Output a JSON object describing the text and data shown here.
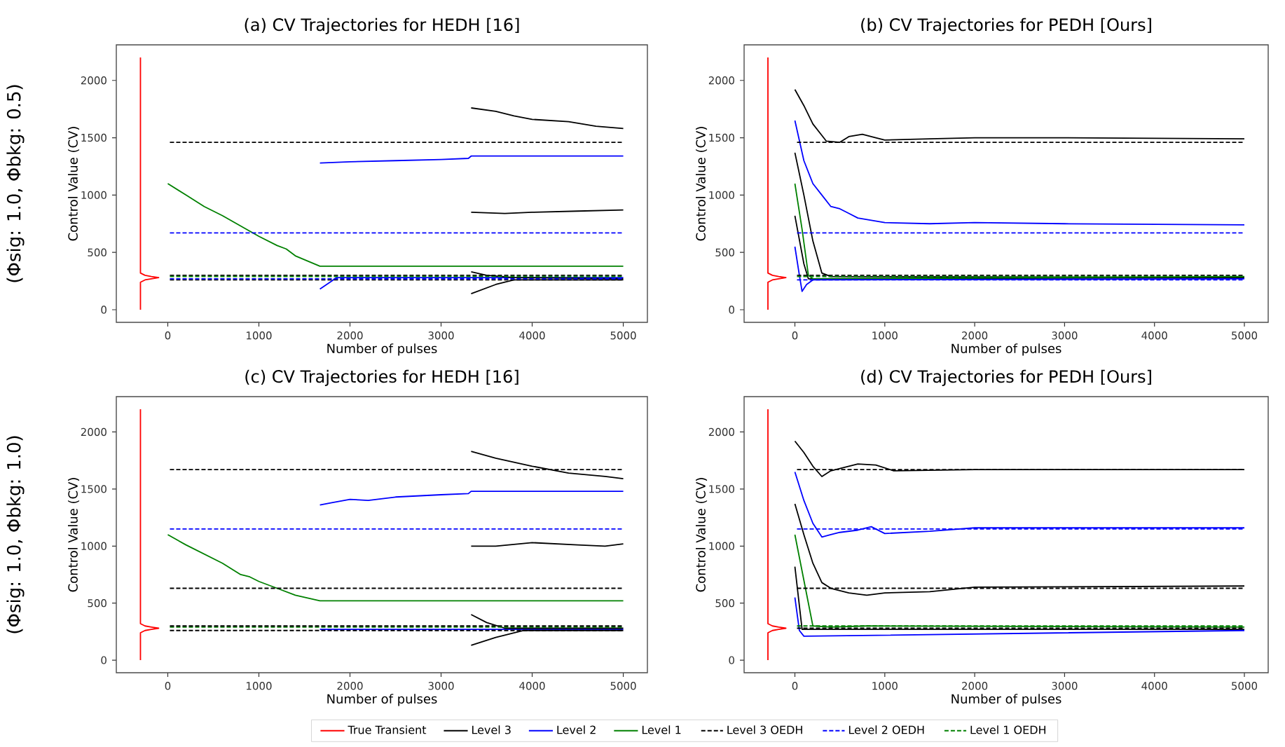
{
  "chart_data": [
    {
      "type": "line",
      "title": "(a) CV Trajectories for HEDH [16]",
      "xlabel": "Number of pulses",
      "ylabel": "Control Value (CV)",
      "xlim": [
        -565,
        5265
      ],
      "ylim": [
        -110,
        2310
      ],
      "xticks": [
        0,
        1000,
        2000,
        3000,
        4000,
        5000
      ],
      "yticks": [
        0,
        500,
        1000,
        1500,
        2000
      ],
      "annotations": [
        "(Φsig: 1.0,    Φbkg: 0.5)"
      ],
      "series": [
        {
          "color": "#ff0000",
          "x": [
            -300,
            -300,
            -300,
            -250,
            -180,
            -100,
            -180,
            -250,
            -300,
            -300,
            -300
          ],
          "values": [
            0,
            200,
            240,
            260,
            270,
            280,
            290,
            300,
            320,
            360,
            2200
          ]
        },
        {
          "color": "#008000",
          "x": [
            0,
            200,
            400,
            600,
            800,
            1000,
            1200,
            1300,
            1400,
            1670,
            5000
          ],
          "values": [
            1100,
            1000,
            900,
            820,
            730,
            640,
            560,
            530,
            470,
            380,
            380
          ]
        },
        {
          "color": "#0000ff",
          "x": [
            1670,
            2000,
            2500,
            3000,
            3300,
            3330,
            5000
          ],
          "values": [
            1280,
            1290,
            1300,
            1310,
            1320,
            1340,
            1340
          ]
        },
        {
          "color": "#0000ff",
          "x": [
            1670,
            1800,
            1850,
            5000
          ],
          "values": [
            180,
            250,
            280,
            280
          ]
        },
        {
          "color": "#000000",
          "x": [
            3330,
            3600,
            3800,
            4000,
            4400,
            4700,
            5000
          ],
          "values": [
            1760,
            1730,
            1690,
            1660,
            1640,
            1600,
            1580
          ]
        },
        {
          "color": "#000000",
          "x": [
            3330,
            3700,
            4000,
            4500,
            5000
          ],
          "values": [
            850,
            840,
            850,
            860,
            870
          ]
        },
        {
          "color": "#000000",
          "x": [
            3330,
            3500,
            3800,
            5000
          ],
          "values": [
            330,
            300,
            280,
            270
          ]
        },
        {
          "color": "#000000",
          "x": [
            3330,
            3600,
            3800,
            5000
          ],
          "values": [
            140,
            220,
            260,
            260
          ]
        },
        {
          "color": "#000000",
          "line_style": "dashed",
          "x": [
            0,
            5000
          ],
          "values": [
            1460,
            1460
          ]
        },
        {
          "color": "#000000",
          "line_style": "dashed",
          "x": [
            0,
            5000
          ],
          "values": [
            300,
            300
          ]
        },
        {
          "color": "#000000",
          "line_style": "dashed",
          "x": [
            0,
            5000
          ],
          "values": [
            260,
            260
          ]
        },
        {
          "color": "#0000ff",
          "line_style": "dashed",
          "x": [
            0,
            5000
          ],
          "values": [
            670,
            670
          ]
        },
        {
          "color": "#0000ff",
          "line_style": "dashed",
          "x": [
            0,
            5000
          ],
          "values": [
            270,
            270
          ]
        },
        {
          "color": "#008000",
          "line_style": "dashed",
          "x": [
            0,
            5000
          ],
          "values": [
            290,
            290
          ]
        }
      ]
    },
    {
      "type": "line",
      "title": "(b) CV Trajectories for PEDH [Ours]",
      "xlabel": "Number of pulses",
      "ylabel": "Control Value (CV)",
      "xlim": [
        -565,
        5265
      ],
      "ylim": [
        -110,
        2310
      ],
      "xticks": [
        0,
        1000,
        2000,
        3000,
        4000,
        5000
      ],
      "yticks": [
        0,
        500,
        1000,
        1500,
        2000
      ],
      "series": [
        {
          "color": "#ff0000",
          "x": [
            -300,
            -300,
            -300,
            -250,
            -180,
            -100,
            -180,
            -250,
            -300,
            -300,
            -300
          ],
          "values": [
            0,
            200,
            240,
            260,
            270,
            280,
            290,
            300,
            320,
            360,
            2200
          ]
        },
        {
          "color": "#000000",
          "x": [
            0,
            100,
            200,
            300,
            350,
            500,
            600,
            750,
            900,
            1000,
            1500,
            2000,
            3000,
            5000
          ],
          "values": [
            1920,
            1780,
            1620,
            1520,
            1470,
            1460,
            1510,
            1530,
            1500,
            1480,
            1490,
            1500,
            1500,
            1490
          ]
        },
        {
          "color": "#0000ff",
          "x": [
            0,
            100,
            200,
            300,
            400,
            500,
            600,
            700,
            1000,
            1500,
            2000,
            3000,
            5000
          ],
          "values": [
            1650,
            1300,
            1100,
            1000,
            900,
            880,
            840,
            800,
            760,
            750,
            760,
            750,
            740
          ]
        },
        {
          "color": "#000000",
          "x": [
            0,
            100,
            200,
            300,
            400,
            5000
          ],
          "values": [
            1370,
            1000,
            600,
            320,
            290,
            280
          ]
        },
        {
          "color": "#000000",
          "x": [
            0,
            100,
            150,
            5000
          ],
          "values": [
            820,
            400,
            270,
            280
          ]
        },
        {
          "color": "#008000",
          "x": [
            0,
            80,
            150,
            200,
            5000
          ],
          "values": [
            1100,
            700,
            300,
            270,
            290
          ]
        },
        {
          "color": "#0000ff",
          "x": [
            0,
            50,
            80,
            130,
            200,
            5000
          ],
          "values": [
            550,
            300,
            160,
            220,
            260,
            270
          ]
        },
        {
          "color": "#000000",
          "line_style": "dashed",
          "x": [
            0,
            5000
          ],
          "values": [
            1460,
            1460
          ]
        },
        {
          "color": "#000000",
          "line_style": "dashed",
          "x": [
            0,
            5000
          ],
          "values": [
            300,
            300
          ]
        },
        {
          "color": "#0000ff",
          "line_style": "dashed",
          "x": [
            0,
            5000
          ],
          "values": [
            670,
            670
          ]
        },
        {
          "color": "#0000ff",
          "line_style": "dashed",
          "x": [
            0,
            5000
          ],
          "values": [
            260,
            260
          ]
        },
        {
          "color": "#008000",
          "line_style": "dashed",
          "x": [
            0,
            5000
          ],
          "values": [
            290,
            290
          ]
        }
      ]
    },
    {
      "type": "line",
      "title": "(c) CV Trajectories for HEDH [16]",
      "xlabel": "Number of pulses",
      "ylabel": "Control Value (CV)",
      "xlim": [
        -565,
        5265
      ],
      "ylim": [
        -110,
        2310
      ],
      "xticks": [
        0,
        1000,
        2000,
        3000,
        4000,
        5000
      ],
      "yticks": [
        0,
        500,
        1000,
        1500,
        2000
      ],
      "annotations": [
        "(Φsig: 1.0,    Φbkg: 1.0)"
      ],
      "legend": "bottom",
      "series": [
        {
          "name": "True Transient",
          "color": "#ff0000",
          "x": [
            -300,
            -300,
            -300,
            -250,
            -180,
            -100,
            -180,
            -250,
            -300,
            -300,
            -300
          ],
          "values": [
            0,
            200,
            240,
            260,
            270,
            280,
            290,
            300,
            320,
            360,
            2200
          ]
        },
        {
          "name": "Level 3",
          "color": "#000000",
          "x": [
            3330,
            3600,
            4000,
            4400,
            4800,
            5000
          ],
          "values": [
            1830,
            1770,
            1700,
            1640,
            1610,
            1590
          ]
        },
        {
          "name": "Level 2",
          "color": "#0000ff",
          "x": [
            1670,
            1800,
            2000,
            2200,
            2500,
            3000,
            3300,
            3330,
            5000
          ],
          "values": [
            1360,
            1380,
            1410,
            1400,
            1430,
            1450,
            1460,
            1480,
            1480
          ]
        },
        {
          "name": "Level 1",
          "color": "#008000",
          "x": [
            0,
            200,
            400,
            600,
            800,
            900,
            1000,
            1200,
            1400,
            1670,
            5000
          ],
          "values": [
            1100,
            1010,
            930,
            850,
            750,
            730,
            690,
            630,
            570,
            520,
            520
          ]
        },
        {
          "color": "#0000ff",
          "x": [
            1670,
            5000
          ],
          "values": [
            270,
            270
          ]
        },
        {
          "color": "#000000",
          "x": [
            3330,
            3600,
            4000,
            4500,
            4800,
            5000
          ],
          "values": [
            1000,
            1000,
            1030,
            1010,
            1000,
            1020
          ]
        },
        {
          "color": "#000000",
          "x": [
            3330,
            3500,
            3700,
            5000
          ],
          "values": [
            400,
            330,
            280,
            280
          ]
        },
        {
          "color": "#000000",
          "x": [
            3330,
            3600,
            3900,
            5000
          ],
          "values": [
            130,
            200,
            260,
            260
          ]
        },
        {
          "name": "Level 3 OEDH",
          "color": "#000000",
          "line_style": "dashed",
          "x": [
            0,
            5000
          ],
          "values": [
            1670,
            1670
          ]
        },
        {
          "name": "Level 2 OEDH",
          "color": "#0000ff",
          "line_style": "dashed",
          "x": [
            0,
            5000
          ],
          "values": [
            1150,
            1150
          ]
        },
        {
          "name": "Level 1 OEDH",
          "color": "#008000",
          "line_style": "dashed",
          "x": [
            0,
            5000
          ],
          "values": [
            290,
            290
          ]
        },
        {
          "color": "#000000",
          "line_style": "dashed",
          "x": [
            0,
            5000
          ],
          "values": [
            630,
            630
          ]
        },
        {
          "color": "#000000",
          "line_style": "dashed",
          "x": [
            0,
            5000
          ],
          "values": [
            300,
            300
          ]
        },
        {
          "color": "#000000",
          "line_style": "dashed",
          "x": [
            0,
            5000
          ],
          "values": [
            260,
            260
          ]
        }
      ]
    },
    {
      "type": "line",
      "title": "(d) CV Trajectories for PEDH [Ours]",
      "xlabel": "Number of pulses",
      "ylabel": "Control Value (CV)",
      "xlim": [
        -565,
        5265
      ],
      "ylim": [
        -110,
        2310
      ],
      "xticks": [
        0,
        1000,
        2000,
        3000,
        4000,
        5000
      ],
      "yticks": [
        0,
        500,
        1000,
        1500,
        2000
      ],
      "series": [
        {
          "color": "#ff0000",
          "x": [
            -300,
            -300,
            -300,
            -250,
            -180,
            -100,
            -180,
            -250,
            -300,
            -300,
            -300
          ],
          "values": [
            0,
            200,
            240,
            260,
            270,
            280,
            290,
            300,
            320,
            360,
            2200
          ]
        },
        {
          "color": "#000000",
          "x": [
            0,
            100,
            200,
            300,
            400,
            500,
            700,
            900,
            1100,
            2000,
            5000
          ],
          "values": [
            1920,
            1820,
            1700,
            1610,
            1660,
            1680,
            1720,
            1710,
            1660,
            1670,
            1670
          ]
        },
        {
          "color": "#0000ff",
          "x": [
            0,
            100,
            200,
            300,
            400,
            500,
            700,
            850,
            1000,
            1500,
            2000,
            5000
          ],
          "values": [
            1650,
            1400,
            1200,
            1080,
            1100,
            1120,
            1140,
            1170,
            1110,
            1130,
            1160,
            1160
          ]
        },
        {
          "color": "#000000",
          "x": [
            0,
            100,
            200,
            300,
            400,
            600,
            800,
            1000,
            1500,
            2000,
            5000
          ],
          "values": [
            1370,
            1100,
            850,
            680,
            630,
            590,
            570,
            590,
            600,
            640,
            650
          ]
        },
        {
          "color": "#000000",
          "x": [
            0,
            80,
            5000
          ],
          "values": [
            820,
            270,
            270
          ]
        },
        {
          "color": "#008000",
          "x": [
            0,
            100,
            200,
            400,
            800,
            5000
          ],
          "values": [
            1100,
            700,
            300,
            290,
            300,
            290
          ]
        },
        {
          "color": "#0000ff",
          "x": [
            0,
            50,
            100,
            5000
          ],
          "values": [
            550,
            260,
            210,
            260
          ]
        },
        {
          "color": "#000000",
          "line_style": "dashed",
          "x": [
            0,
            5000
          ],
          "values": [
            1670,
            1670
          ]
        },
        {
          "color": "#0000ff",
          "line_style": "dashed",
          "x": [
            0,
            5000
          ],
          "values": [
            1150,
            1150
          ]
        },
        {
          "color": "#000000",
          "line_style": "dashed",
          "x": [
            0,
            5000
          ],
          "values": [
            630,
            630
          ]
        },
        {
          "color": "#000000",
          "line_style": "dashed",
          "x": [
            0,
            5000
          ],
          "values": [
            280,
            280
          ]
        },
        {
          "color": "#008000",
          "line_style": "dashed",
          "x": [
            0,
            5000
          ],
          "values": [
            300,
            300
          ]
        }
      ]
    }
  ]
}
